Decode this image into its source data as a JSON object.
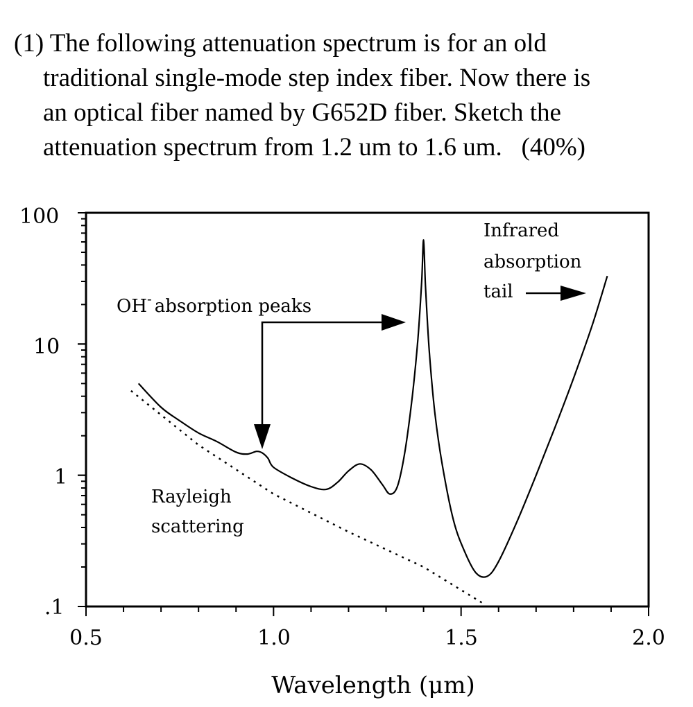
{
  "question": {
    "lines": [
      "(1) The following attenuation spectrum is for an old",
      "traditional single-mode step index fiber. Now there is",
      "an optical fiber named by G652D fiber. Sketch the",
      "attenuation spectrum from 1.2 um to 1.6 um.   (40%)"
    ]
  },
  "chart_data": {
    "type": "line",
    "xlabel": "Wavelength  (μm)",
    "ylabel": "",
    "xlim": [
      0.5,
      2.0
    ],
    "ylim": [
      0.1,
      100
    ],
    "yscale": "log",
    "grid": false,
    "x_tick_labels": [
      "0.5",
      "1.0",
      "1.5",
      "2.0"
    ],
    "y_tick_labels": [
      ".1",
      "1",
      "10",
      "100"
    ],
    "series": [
      {
        "style": "solid",
        "x": [
          0.64,
          0.7,
          0.75,
          0.8,
          0.85,
          0.9,
          0.93,
          0.955,
          0.97,
          0.985,
          1.0,
          1.05,
          1.1,
          1.14,
          1.17,
          1.2,
          1.23,
          1.26,
          1.29,
          1.31,
          1.33,
          1.35,
          1.37,
          1.385,
          1.395,
          1.4,
          1.405,
          1.415,
          1.43,
          1.45,
          1.48,
          1.51,
          1.54,
          1.57,
          1.6,
          1.65,
          1.7,
          1.75,
          1.8,
          1.85,
          1.89
        ],
        "y": [
          5.0,
          3.3,
          2.6,
          2.1,
          1.8,
          1.5,
          1.45,
          1.52,
          1.48,
          1.35,
          1.15,
          0.95,
          0.82,
          0.78,
          0.88,
          1.08,
          1.22,
          1.1,
          0.85,
          0.72,
          0.82,
          1.5,
          4.0,
          11.0,
          30.0,
          62.0,
          28.0,
          9.0,
          3.0,
          1.2,
          0.45,
          0.26,
          0.18,
          0.17,
          0.22,
          0.45,
          1.0,
          2.3,
          5.5,
          14.0,
          33.0
        ]
      },
      {
        "name": "Rayleigh scattering",
        "style": "dotted",
        "x": [
          0.62,
          0.8,
          1.0,
          1.2,
          1.4,
          1.56
        ],
        "y": [
          4.4,
          1.7,
          0.72,
          0.37,
          0.2,
          0.105
        ]
      }
    ],
    "annotations": {
      "oh_label": "OH",
      "oh_superscript": "-",
      "oh_label_rest": "absorption peaks",
      "rayleigh_line1": "Rayleigh",
      "rayleigh_line2": "scattering",
      "infrared_line1": "Infrared",
      "infrared_line2": "absorption",
      "infrared_line3": "tail"
    }
  }
}
